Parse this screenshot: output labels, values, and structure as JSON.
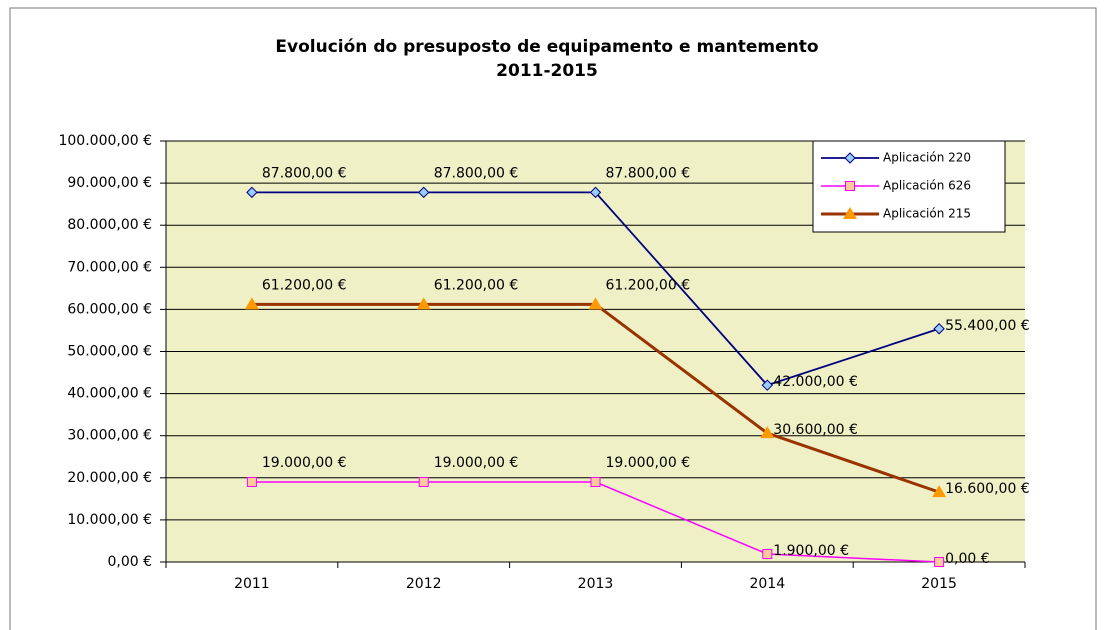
{
  "chart_data": {
    "type": "line",
    "title": "Evolución do presuposto de equipamento e mantemento",
    "subtitle": "2011-2015",
    "categories": [
      "2011",
      "2012",
      "2013",
      "2014",
      "2015"
    ],
    "series": [
      {
        "name": "Aplicación 220",
        "color": "#000080",
        "marker": "diamond",
        "marker_color": "#99ccff",
        "values": [
          87800,
          87800,
          87800,
          42000,
          55400
        ],
        "value_labels": [
          "87.800,00 €",
          "87.800,00 €",
          "87.800,00 €",
          "42.000,00 €",
          "55.400,00 €"
        ]
      },
      {
        "name": "Aplicación 626",
        "color": "#ff00ff",
        "marker": "square",
        "marker_color": "#ffcc99",
        "values": [
          19000,
          19000,
          19000,
          1900,
          0
        ],
        "value_labels": [
          "19.000,00 €",
          "19.000,00 €",
          "19.000,00 €",
          "1.900,00 €",
          "0,00 €"
        ]
      },
      {
        "name": "Aplicación 215",
        "color": "#993300",
        "marker": "triangle",
        "marker_color": "#ff9900",
        "values": [
          61200,
          61200,
          61200,
          30600,
          16600
        ],
        "value_labels": [
          "61.200,00 €",
          "61.200,00 €",
          "61.200,00 €",
          "30.600,00 €",
          "16.600,00 €"
        ]
      }
    ],
    "ylim": [
      0,
      100000
    ],
    "yticks": [
      {
        "value": 0,
        "label": "0,00 €"
      },
      {
        "value": 10000,
        "label": "10.000,00 €"
      },
      {
        "value": 20000,
        "label": "20.000,00 €"
      },
      {
        "value": 30000,
        "label": "30.000,00 €"
      },
      {
        "value": 40000,
        "label": "40.000,00 €"
      },
      {
        "value": 50000,
        "label": "50.000,00 €"
      },
      {
        "value": 60000,
        "label": "60.000,00 €"
      },
      {
        "value": 70000,
        "label": "70.000,00 €"
      },
      {
        "value": 80000,
        "label": "80.000,00 €"
      },
      {
        "value": 90000,
        "label": "90.000,00 €"
      },
      {
        "value": 100000,
        "label": "100.000,00 €"
      }
    ],
    "grid": true,
    "legend": "top-right"
  }
}
